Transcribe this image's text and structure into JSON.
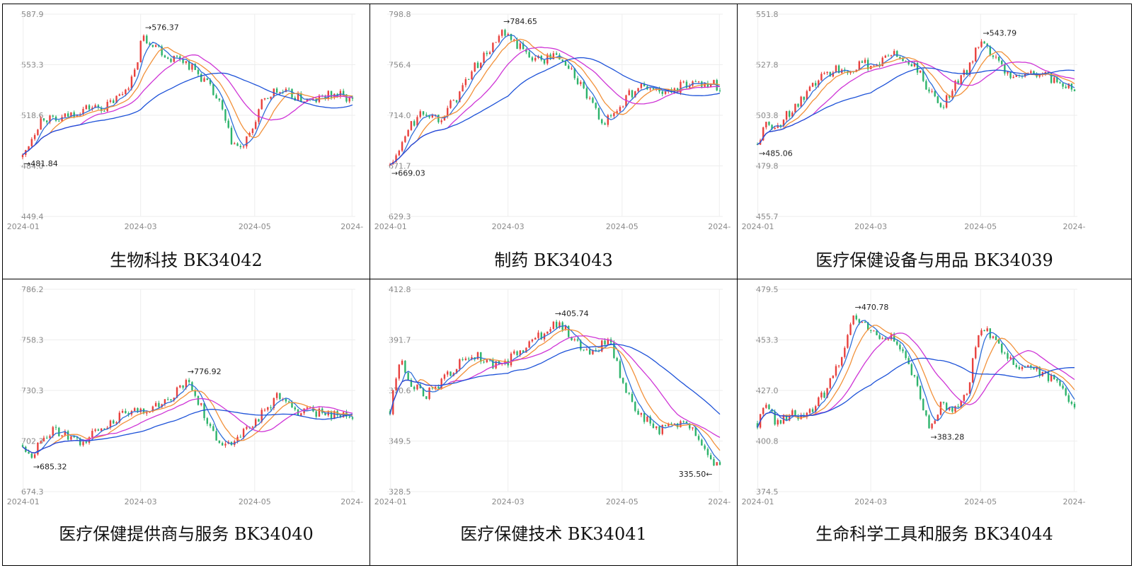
{
  "colors": {
    "up": "#e8413e",
    "down": "#2db36b",
    "ma5": "#2f6fd8",
    "ma10": "#f2913a",
    "ma20": "#cf35d6",
    "ma60": "#1d52d8",
    "grid": "#eeeeee",
    "axis_text": "#8a8a8a"
  },
  "chart_data": [
    {
      "type": "candlestick",
      "caption": "生物科技 BK34042",
      "yticks": [
        "587.9",
        "553.3",
        "518.6",
        "484.0",
        "449.4"
      ],
      "xticks": [
        "2024-01",
        "2024-03",
        "2024-05",
        "2024-"
      ],
      "ylim": [
        449.4,
        587.9
      ],
      "high_label": "→576.37",
      "low_label": "→481.84",
      "path": [
        [
          0,
          490
        ],
        [
          0.03,
          505
        ],
        [
          0.06,
          518
        ],
        [
          0.1,
          514
        ],
        [
          0.15,
          520
        ],
        [
          0.2,
          524
        ],
        [
          0.25,
          524
        ],
        [
          0.3,
          533
        ],
        [
          0.34,
          547
        ],
        [
          0.36,
          572
        ],
        [
          0.4,
          568
        ],
        [
          0.44,
          558
        ],
        [
          0.48,
          558
        ],
        [
          0.52,
          550
        ],
        [
          0.56,
          540
        ],
        [
          0.6,
          525
        ],
        [
          0.63,
          502
        ],
        [
          0.66,
          495
        ],
        [
          0.69,
          505
        ],
        [
          0.72,
          525
        ],
        [
          0.76,
          535
        ],
        [
          0.8,
          534
        ],
        [
          0.84,
          530
        ],
        [
          0.88,
          528
        ],
        [
          0.92,
          532
        ],
        [
          0.96,
          533
        ],
        [
          1,
          528
        ]
      ]
    },
    {
      "type": "candlestick",
      "caption": "制药 BK34043",
      "yticks": [
        "798.8",
        "756.4",
        "714.0",
        "671.7",
        "629.3"
      ],
      "xticks": [
        "2024-01",
        "2024-03",
        "2024-05",
        "2024-"
      ],
      "ylim": [
        629.3,
        798.8
      ],
      "high_label": "→784.65",
      "low_label": "→669.03",
      "path": [
        [
          0,
          672
        ],
        [
          0.03,
          685
        ],
        [
          0.06,
          705
        ],
        [
          0.1,
          716
        ],
        [
          0.15,
          712
        ],
        [
          0.2,
          728
        ],
        [
          0.25,
          752
        ],
        [
          0.3,
          768
        ],
        [
          0.34,
          782
        ],
        [
          0.38,
          774
        ],
        [
          0.42,
          765
        ],
        [
          0.46,
          760
        ],
        [
          0.5,
          765
        ],
        [
          0.54,
          755
        ],
        [
          0.58,
          738
        ],
        [
          0.62,
          718
        ],
        [
          0.65,
          708
        ],
        [
          0.68,
          716
        ],
        [
          0.72,
          730
        ],
        [
          0.76,
          738
        ],
        [
          0.8,
          736
        ],
        [
          0.84,
          732
        ],
        [
          0.88,
          738
        ],
        [
          0.92,
          742
        ],
        [
          0.96,
          742
        ],
        [
          1,
          738
        ]
      ]
    },
    {
      "type": "candlestick",
      "caption": "医疗保健设备与用品 BK34039",
      "yticks": [
        "551.8",
        "527.8",
        "503.8",
        "479.8",
        "455.7"
      ],
      "xticks": [
        "2024-01",
        "2024-03",
        "2024-05",
        "2024-"
      ],
      "ylim": [
        455.7,
        551.8
      ],
      "high_label": "→543.79",
      "low_label": "→485.06",
      "path": [
        [
          0,
          490
        ],
        [
          0.03,
          500
        ],
        [
          0.06,
          498
        ],
        [
          0.1,
          505
        ],
        [
          0.15,
          512
        ],
        [
          0.2,
          522
        ],
        [
          0.25,
          526
        ],
        [
          0.3,
          526
        ],
        [
          0.34,
          528
        ],
        [
          0.38,
          528
        ],
        [
          0.42,
          533
        ],
        [
          0.46,
          530
        ],
        [
          0.5,
          527
        ],
        [
          0.54,
          515
        ],
        [
          0.58,
          508
        ],
        [
          0.62,
          518
        ],
        [
          0.66,
          525
        ],
        [
          0.7,
          538
        ],
        [
          0.74,
          532
        ],
        [
          0.78,
          525
        ],
        [
          0.82,
          522
        ],
        [
          0.86,
          524
        ],
        [
          0.9,
          523
        ],
        [
          0.94,
          520
        ],
        [
          0.98,
          518
        ],
        [
          1,
          516
        ]
      ]
    },
    {
      "type": "candlestick",
      "caption": "医疗保健提供商与服务 BK34040",
      "yticks": [
        "786.2",
        "758.3",
        "730.3",
        "702.3",
        "674.3"
      ],
      "xticks": [
        "2024-01",
        "2024-03",
        "2024-05",
        "2024-"
      ],
      "ylim": [
        674.3,
        786.2
      ],
      "high_label": "→776.92",
      "low_label": "→685.32",
      "path": [
        [
          0,
          700
        ],
        [
          0.03,
          695
        ],
        [
          0.06,
          705
        ],
        [
          0.1,
          708
        ],
        [
          0.14,
          704
        ],
        [
          0.18,
          700
        ],
        [
          0.22,
          708
        ],
        [
          0.26,
          712
        ],
        [
          0.3,
          716
        ],
        [
          0.34,
          718
        ],
        [
          0.38,
          720
        ],
        [
          0.42,
          722
        ],
        [
          0.46,
          728
        ],
        [
          0.5,
          735
        ],
        [
          0.54,
          722
        ],
        [
          0.58,
          705
        ],
        [
          0.62,
          700
        ],
        [
          0.66,
          706
        ],
        [
          0.7,
          712
        ],
        [
          0.74,
          720
        ],
        [
          0.78,
          728
        ],
        [
          0.82,
          718
        ],
        [
          0.86,
          720
        ],
        [
          0.9,
          718
        ],
        [
          0.94,
          717
        ],
        [
          0.98,
          716
        ],
        [
          1,
          714
        ]
      ]
    },
    {
      "type": "candlestick",
      "caption": "医疗保健技术 BK34041",
      "yticks": [
        "412.8",
        "391.7",
        "370.6",
        "349.5",
        "328.5"
      ],
      "xticks": [
        "2024-01",
        "2024-03",
        "2024-05",
        "2024-"
      ],
      "ylim": [
        328.5,
        412.8
      ],
      "high_label": "→405.74",
      "low_label": "335.50←",
      "path": [
        [
          0,
          362
        ],
        [
          0.03,
          384
        ],
        [
          0.06,
          375
        ],
        [
          0.1,
          368
        ],
        [
          0.14,
          372
        ],
        [
          0.18,
          378
        ],
        [
          0.22,
          383
        ],
        [
          0.26,
          385
        ],
        [
          0.3,
          382
        ],
        [
          0.34,
          380
        ],
        [
          0.38,
          386
        ],
        [
          0.42,
          390
        ],
        [
          0.46,
          394
        ],
        [
          0.5,
          398
        ],
        [
          0.54,
          395
        ],
        [
          0.58,
          388
        ],
        [
          0.62,
          386
        ],
        [
          0.66,
          393
        ],
        [
          0.7,
          376
        ],
        [
          0.74,
          362
        ],
        [
          0.78,
          358
        ],
        [
          0.82,
          354
        ],
        [
          0.86,
          356
        ],
        [
          0.9,
          358
        ],
        [
          0.94,
          350
        ],
        [
          0.97,
          342
        ],
        [
          1,
          338
        ]
      ]
    },
    {
      "type": "candlestick",
      "caption": "生命科学工具和服务 BK34044",
      "yticks": [
        "479.5",
        "453.3",
        "427.0",
        "400.8",
        "374.5"
      ],
      "xticks": [
        "2024-01",
        "2024-03",
        "2024-05",
        "2024-"
      ],
      "ylim": [
        374.5,
        479.5
      ],
      "high_label": "→470.78",
      "low_label": "→383.28",
      "path": [
        [
          0,
          410
        ],
        [
          0.03,
          420
        ],
        [
          0.06,
          410
        ],
        [
          0.1,
          415
        ],
        [
          0.14,
          412
        ],
        [
          0.18,
          418
        ],
        [
          0.22,
          428
        ],
        [
          0.26,
          442
        ],
        [
          0.3,
          465
        ],
        [
          0.34,
          460
        ],
        [
          0.38,
          455
        ],
        [
          0.42,
          455
        ],
        [
          0.46,
          445
        ],
        [
          0.5,
          430
        ],
        [
          0.54,
          408
        ],
        [
          0.58,
          420
        ],
        [
          0.62,
          418
        ],
        [
          0.66,
          425
        ],
        [
          0.7,
          460
        ],
        [
          0.74,
          455
        ],
        [
          0.78,
          445
        ],
        [
          0.82,
          440
        ],
        [
          0.86,
          438
        ],
        [
          0.9,
          436
        ],
        [
          0.94,
          432
        ],
        [
          0.98,
          424
        ],
        [
          1,
          420
        ]
      ]
    }
  ]
}
